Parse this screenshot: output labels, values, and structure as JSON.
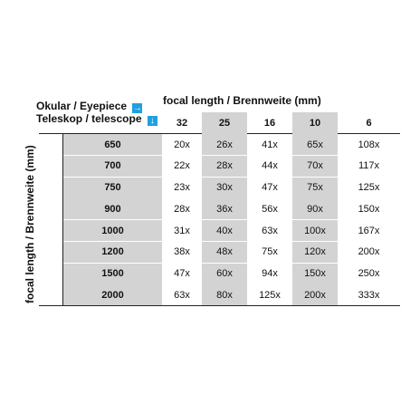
{
  "legend": {
    "eyepiece_label": "Okular / Eyepiece",
    "telescope_label": "Teleskop / telescope",
    "right_arrow": "→",
    "down_arrow": "↓",
    "arrow_color": "#20a0e0"
  },
  "axes": {
    "top_label": "focal length / Brennweite (mm)",
    "left_label": "focal length / Brennweite (mm)"
  },
  "columns": [
    "32",
    "25",
    "16",
    "10",
    "6"
  ],
  "rows": [
    {
      "focal": "650",
      "values": [
        "20x",
        "26x",
        "41x",
        "65x",
        "108x"
      ]
    },
    {
      "focal": "700",
      "values": [
        "22x",
        "28x",
        "44x",
        "70x",
        "117x"
      ]
    },
    {
      "focal": "750",
      "values": [
        "23x",
        "30x",
        "47x",
        "75x",
        "125x"
      ]
    },
    {
      "focal": "900",
      "values": [
        "28x",
        "36x",
        "56x",
        "90x",
        "150x"
      ]
    },
    {
      "focal": "1000",
      "values": [
        "31x",
        "40x",
        "63x",
        "100x",
        "167x"
      ]
    },
    {
      "focal": "1200",
      "values": [
        "38x",
        "48x",
        "75x",
        "120x",
        "200x"
      ]
    },
    {
      "focal": "1500",
      "values": [
        "47x",
        "60x",
        "94x",
        "150x",
        "250x"
      ]
    },
    {
      "focal": "2000",
      "values": [
        "63x",
        "80x",
        "125x",
        "200x",
        "333x"
      ]
    }
  ]
}
